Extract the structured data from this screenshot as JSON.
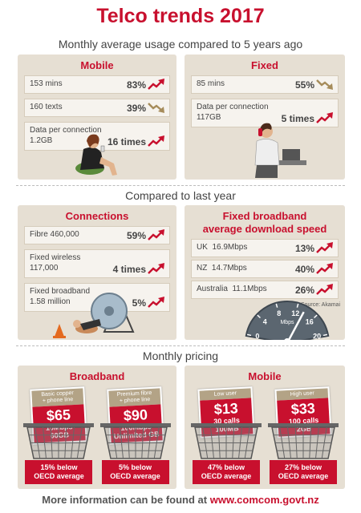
{
  "title": "Telco trends 2017",
  "sections": [
    {
      "heading": "Monthly average usage compared to 5 years ago",
      "panels": [
        {
          "title": "Mobile",
          "rows": [
            {
              "label": [
                "153 mins"
              ],
              "value": "83%",
              "trend": "up"
            },
            {
              "label": [
                "160 texts"
              ],
              "value": "39%",
              "trend": "down"
            },
            {
              "label": [
                "Data per connection",
                "1.2GB"
              ],
              "value": "16 times",
              "trend": "up"
            }
          ]
        },
        {
          "title": "Fixed",
          "rows": [
            {
              "label": [
                "85 mins"
              ],
              "value": "55%",
              "trend": "down"
            },
            {
              "label": [
                "Data per connection",
                "117GB"
              ],
              "value": "5 times",
              "trend": "up"
            }
          ]
        }
      ]
    },
    {
      "heading": "Compared to last year",
      "panels": [
        {
          "title": "Connections",
          "rows": [
            {
              "label": [
                "Fibre 460,000"
              ],
              "value": "59%",
              "trend": "up"
            },
            {
              "label": [
                "Fixed wireless",
                "117,000"
              ],
              "value": "4 times",
              "trend": "up"
            },
            {
              "label": [
                "Fixed broadband",
                "1.58 million"
              ],
              "value": "5%",
              "trend": "up"
            }
          ]
        },
        {
          "title": [
            "Fixed broadband",
            "average download speed"
          ],
          "rows": [
            {
              "label": [
                "UK  16.9Mbps"
              ],
              "value": "13%",
              "trend": "up"
            },
            {
              "label": [
                "NZ  14.7Mbps"
              ],
              "value": "40%",
              "trend": "up"
            },
            {
              "label": [
                "Australia  11.1Mbps"
              ],
              "value": "26%",
              "trend": "up"
            }
          ],
          "source": "Source: Akamai",
          "gauge": {
            "ticks": [
              0,
              4,
              8,
              12,
              16,
              20
            ],
            "unit": "Mbps"
          }
        }
      ]
    },
    {
      "heading": "Monthly pricing",
      "panels": [
        {
          "title": "Broadband",
          "plans": [
            {
              "tag": [
                "Basic copper",
                "+ phone line"
              ],
              "price": "$65",
              "details": [
                "10Mbps",
                "60GB"
              ],
              "note": [
                "15% below",
                "OECD average"
              ]
            },
            {
              "tag": [
                "Premium fibre",
                "+ phone line"
              ],
              "price": "$90",
              "details": [
                "100Mbps",
                "Unlimited GB"
              ],
              "note": [
                "5% below",
                "OECD average"
              ]
            }
          ]
        },
        {
          "title": "Mobile",
          "plans": [
            {
              "tag": [
                "Low user"
              ],
              "price": "$13",
              "details": [
                "30 calls",
                "100MB"
              ],
              "note": [
                "47% below",
                "OECD average"
              ]
            },
            {
              "tag": [
                "High user"
              ],
              "price": "$33",
              "details": [
                "100 calls",
                "2GB"
              ],
              "note": [
                "27% below",
                "OECD average"
              ]
            }
          ]
        }
      ]
    }
  ],
  "footer": {
    "text": "More information can be found at",
    "link": "www.comcom.govt.nz"
  }
}
